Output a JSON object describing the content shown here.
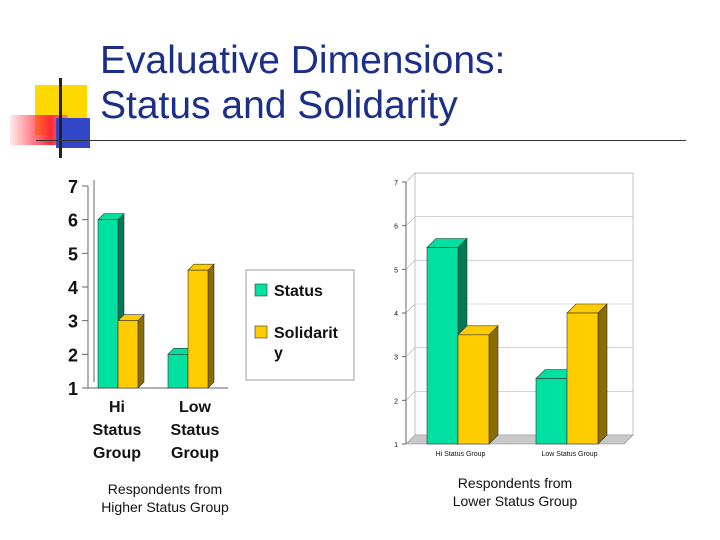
{
  "title": {
    "line1": "Evaluative Dimensions:",
    "line2": "Status and Solidarity"
  },
  "colors": {
    "status": "#00e0a0",
    "status_side": "#007a55",
    "solidarity": "#ffcc00",
    "solidarity_side": "#8a6d00",
    "title": "#1c2f88"
  },
  "chart_data": [
    {
      "type": "bar",
      "categories": [
        [
          "Hi",
          "Status",
          "Group"
        ],
        [
          "Low",
          "Status",
          "Group"
        ]
      ],
      "series": [
        {
          "name": "Status",
          "values": [
            6,
            2
          ]
        },
        {
          "name": "Solidarit y",
          "values": [
            3,
            4.5
          ]
        }
      ],
      "ylim": [
        1,
        7
      ],
      "yticks": [
        1,
        2,
        3,
        4,
        5,
        6,
        7
      ],
      "legend_position": "right",
      "caption": [
        "Respondents from",
        "Higher Status Group"
      ]
    },
    {
      "type": "bar",
      "categories": [
        "Hi Status Group",
        "Low Status Group"
      ],
      "series": [
        {
          "name": "Status",
          "values": [
            5.5,
            2.5
          ]
        },
        {
          "name": "Solidarity",
          "values": [
            3.5,
            4
          ]
        }
      ],
      "ylim": [
        1,
        7
      ],
      "yticks": [
        1,
        2,
        3,
        4,
        5,
        6,
        7
      ],
      "caption": [
        "Respondents from",
        "Lower Status Group"
      ]
    }
  ]
}
